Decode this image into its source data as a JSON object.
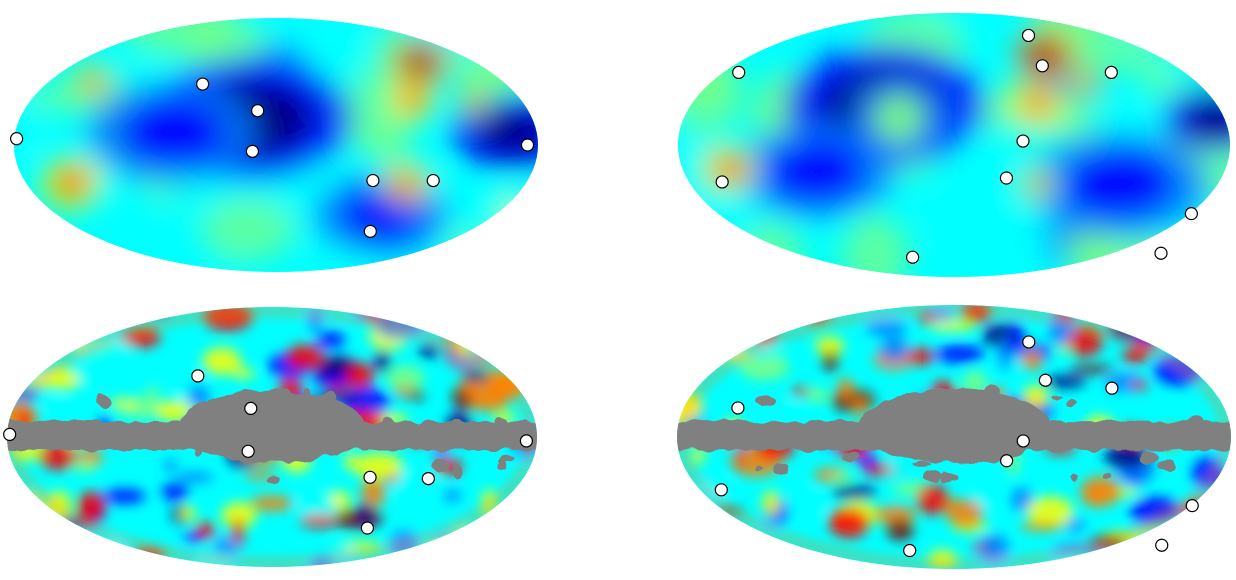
{
  "figure": {
    "panels": [
      {
        "name": "top-left-map",
        "style": "smooth",
        "hotspots": [
          {
            "lon": 0.55,
            "lat": 0.65,
            "value": 0.95,
            "size": 0.12
          },
          {
            "lon": 0.52,
            "lat": 0.35,
            "value": 0.9,
            "size": 0.1
          },
          {
            "lon": -0.78,
            "lat": -0.3,
            "value": 0.92,
            "size": 0.13
          },
          {
            "lon": 0.5,
            "lat": -0.3,
            "value": 0.85,
            "size": 0.1
          },
          {
            "lon": 0.75,
            "lat": 0.35,
            "value": 0.75,
            "size": 0.08
          },
          {
            "lon": -0.7,
            "lat": 0.5,
            "value": 0.7,
            "size": 0.1
          },
          {
            "lon": 0.9,
            "lat": -0.5,
            "value": 0.65,
            "size": 0.1
          }
        ],
        "coldspots": [
          {
            "lon": -0.1,
            "lat": 0.2,
            "value": 0.05,
            "size": 0.3
          },
          {
            "lon": 0.9,
            "lat": 0.1,
            "value": 0.02,
            "size": 0.18
          },
          {
            "lon": -0.4,
            "lat": 0.1,
            "value": 0.15,
            "size": 0.25
          },
          {
            "lon": 0.4,
            "lat": -0.55,
            "value": 0.18,
            "size": 0.2
          }
        ],
        "markers": [
          {
            "lon": -0.99,
            "lat": 0.05
          },
          {
            "lon": -0.28,
            "lat": 0.48
          },
          {
            "lon": -0.07,
            "lat": 0.27
          },
          {
            "lon": -0.09,
            "lat": -0.05
          },
          {
            "lon": 0.37,
            "lat": -0.28
          },
          {
            "lon": 0.6,
            "lat": -0.28
          },
          {
            "lon": 0.36,
            "lat": -0.68
          },
          {
            "lon": 0.96,
            "lat": 0.0
          }
        ]
      },
      {
        "name": "top-right-map",
        "style": "smooth",
        "hotspots": [
          {
            "lon": 0.33,
            "lat": 0.68,
            "value": 0.95,
            "size": 0.12
          },
          {
            "lon": 0.3,
            "lat": 0.3,
            "value": 0.85,
            "size": 0.1
          },
          {
            "lon": -0.82,
            "lat": -0.18,
            "value": 0.92,
            "size": 0.11
          },
          {
            "lon": 0.48,
            "lat": 0.5,
            "value": 0.78,
            "size": 0.08
          },
          {
            "lon": 0.3,
            "lat": -0.3,
            "value": 0.75,
            "size": 0.08
          },
          {
            "lon": -0.2,
            "lat": 0.2,
            "value": 0.55,
            "size": 0.2
          }
        ],
        "coldspots": [
          {
            "lon": -0.25,
            "lat": 0.3,
            "value": 0.05,
            "size": 0.28
          },
          {
            "lon": 0.95,
            "lat": 0.2,
            "value": 0.0,
            "size": 0.15
          },
          {
            "lon": 0.6,
            "lat": -0.3,
            "value": 0.12,
            "size": 0.25
          },
          {
            "lon": -0.5,
            "lat": -0.2,
            "value": 0.18,
            "size": 0.22
          }
        ],
        "markers": [
          {
            "lon": -0.78,
            "lat": 0.55
          },
          {
            "lon": -0.84,
            "lat": -0.28
          },
          {
            "lon": 0.27,
            "lat": 0.83
          },
          {
            "lon": 0.32,
            "lat": 0.6
          },
          {
            "lon": 0.57,
            "lat": 0.55
          },
          {
            "lon": 0.25,
            "lat": 0.03
          },
          {
            "lon": 0.19,
            "lat": -0.25
          },
          {
            "lon": -0.15,
            "lat": -0.85
          },
          {
            "lon": 0.86,
            "lat": -0.52
          },
          {
            "lon": 0.75,
            "lat": -0.82
          }
        ]
      },
      {
        "name": "bottom-left-map",
        "style": "masked",
        "markers": [
          {
            "lon": -0.99,
            "lat": 0.02
          },
          {
            "lon": -0.28,
            "lat": 0.47
          },
          {
            "lon": -0.08,
            "lat": 0.22
          },
          {
            "lon": -0.09,
            "lat": -0.11
          },
          {
            "lon": 0.37,
            "lat": -0.31
          },
          {
            "lon": 0.59,
            "lat": -0.32
          },
          {
            "lon": 0.36,
            "lat": -0.7
          },
          {
            "lon": 0.96,
            "lat": -0.03
          }
        ]
      },
      {
        "name": "bottom-right-map",
        "style": "masked",
        "markers": [
          {
            "lon": -0.78,
            "lat": 0.22
          },
          {
            "lon": -0.84,
            "lat": -0.4
          },
          {
            "lon": 0.27,
            "lat": 0.72
          },
          {
            "lon": 0.33,
            "lat": 0.43
          },
          {
            "lon": 0.57,
            "lat": 0.37
          },
          {
            "lon": 0.25,
            "lat": -0.03
          },
          {
            "lon": 0.19,
            "lat": -0.18
          },
          {
            "lon": -0.16,
            "lat": -0.86
          },
          {
            "lon": 0.86,
            "lat": -0.52
          },
          {
            "lon": 0.75,
            "lat": -0.82
          }
        ]
      }
    ],
    "colors": {
      "mask": "#808080",
      "marker_fill": "#ffffff",
      "marker_stroke": "#000000",
      "colormap": [
        "#00007f",
        "#0000ff",
        "#007fff",
        "#00ffff",
        "#7fff7f",
        "#ffff00",
        "#ff7f00",
        "#ff0000",
        "#7f0000"
      ]
    }
  }
}
